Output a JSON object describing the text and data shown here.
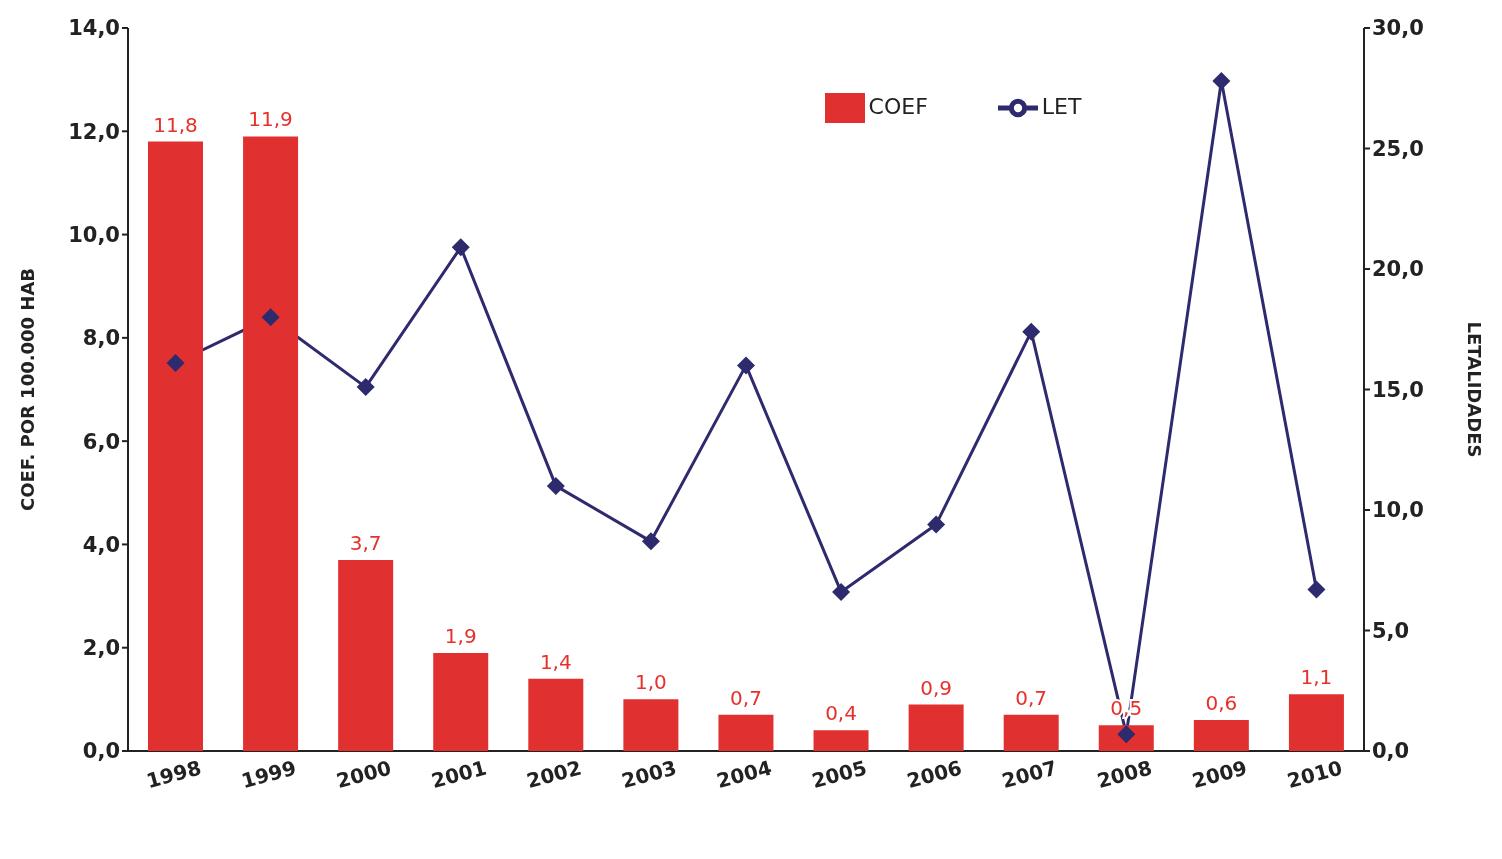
{
  "chart_data": {
    "type": "bar",
    "categories": [
      "1998",
      "1999",
      "2000",
      "2001",
      "2002",
      "2003",
      "2004",
      "2005",
      "2006",
      "2007",
      "2008",
      "2009",
      "2010"
    ],
    "ylabel": "COEF. POR 100.000 HAB",
    "y2label": "LETALIDADES",
    "ylim": [
      0,
      14
    ],
    "yticks": [
      {
        "value": 0,
        "label": "0,0"
      },
      {
        "value": 2,
        "label": "2,0"
      },
      {
        "value": 4,
        "label": "4,0"
      },
      {
        "value": 6,
        "label": "6,0"
      },
      {
        "value": 8,
        "label": "8,0"
      },
      {
        "value": 10,
        "label": "10,0"
      },
      {
        "value": 12,
        "label": "12,0"
      },
      {
        "value": 14,
        "label": "14,0"
      }
    ],
    "y2lim": [
      0,
      30
    ],
    "y2ticks": [
      {
        "value": 0,
        "label": "0,0"
      },
      {
        "value": 5,
        "label": "5,0"
      },
      {
        "value": 10,
        "label": "10,0"
      },
      {
        "value": 15,
        "label": "15,0"
      },
      {
        "value": 20,
        "label": "20,0"
      },
      {
        "value": 25,
        "label": "25,0"
      },
      {
        "value": 30,
        "label": "30,0"
      }
    ],
    "legend": "top",
    "grid": false,
    "series": [
      {
        "name": "COEF",
        "color": "#e03030",
        "values": [
          11.8,
          11.9,
          3.7,
          1.9,
          1.4,
          1.0,
          0.7,
          0.4,
          0.9,
          0.7,
          0.5,
          0.6,
          1.1
        ],
        "value_labels": [
          "11,8",
          "11,9",
          "3,7",
          "1,9",
          "1,4",
          "1,0",
          "0,7",
          "0,4",
          "0,9",
          "0,7",
          "0,5",
          "0,6",
          "1,1"
        ]
      },
      {
        "name": "LET",
        "type": "line",
        "axis": "y2",
        "color": "#2e2a6e",
        "marker": "diamond",
        "line_style": "solid",
        "values": [
          16.1,
          18.0,
          15.1,
          20.9,
          11.0,
          8.7,
          16.0,
          6.6,
          9.4,
          17.4,
          0.7,
          27.8,
          6.7
        ]
      }
    ]
  }
}
